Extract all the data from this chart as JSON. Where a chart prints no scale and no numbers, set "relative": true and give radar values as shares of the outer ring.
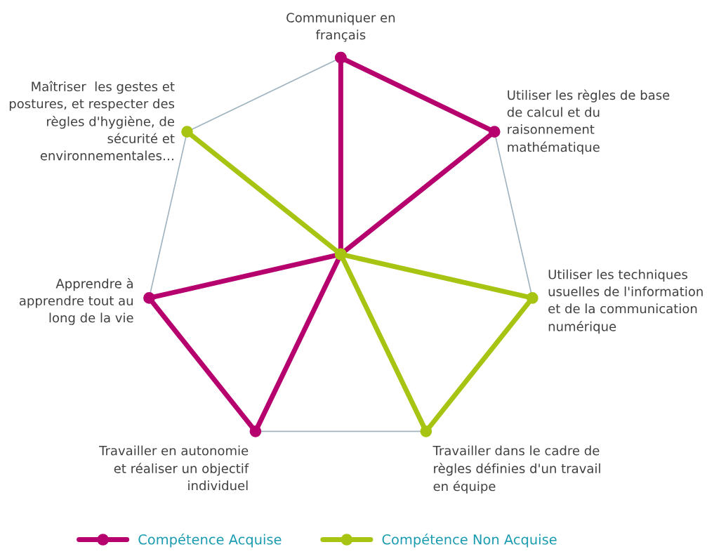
{
  "chart_data": {
    "type": "radar",
    "relative": true,
    "categories": [
      "Communiquer en\nfrançais",
      "Utiliser les règles de base\nde calcul et du\nraisonnement\nmathématique",
      "Utiliser les techniques\nusuelles de l'information\net de la communication\nnumérique",
      "Travailler dans le cadre de\nrègles définies d'un travail\nen équipe",
      "Travailler en autonomie\net réaliser un objectif\nindividuel",
      "Apprendre à\napprendre tout au\nlong de la vie",
      "Maîtriser  les gestes et\npostures, et respecter des\nrègles d'hygiène, de\nsécurité et\nenvironnementales…"
    ],
    "series": [
      {
        "name": "Compétence Acquise",
        "color": "#b5006e",
        "values": [
          1,
          1,
          0,
          0,
          1,
          1,
          0
        ]
      },
      {
        "name": "Compétence Non Acquise",
        "color": "#a8c412",
        "values": [
          0,
          0,
          1,
          1,
          0,
          0,
          1
        ]
      }
    ],
    "marker": "circle",
    "grid": true,
    "legend": "bottom"
  }
}
